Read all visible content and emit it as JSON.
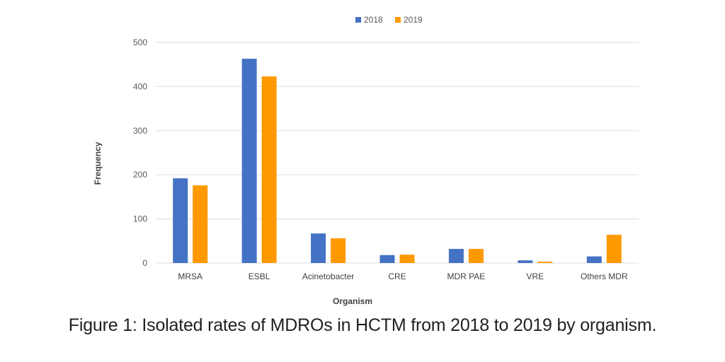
{
  "chart_data": {
    "type": "bar",
    "title": "",
    "xlabel": "Organism",
    "ylabel": "Frequency",
    "ylim": [
      0,
      500
    ],
    "yticks": [
      0,
      100,
      200,
      300,
      400,
      500
    ],
    "grid": true,
    "legend_position": "top-center",
    "categories": [
      "MRSA",
      "ESBL",
      "Acinetobacter",
      "CRE",
      "MDR PAE",
      "VRE",
      "Others MDR"
    ],
    "series": [
      {
        "name": "2018",
        "color": "#4472C4",
        "values": [
          192,
          463,
          67,
          18,
          32,
          6,
          15
        ]
      },
      {
        "name": "2019",
        "color": "#FF9900",
        "values": [
          176,
          423,
          56,
          19,
          32,
          3,
          64
        ]
      }
    ]
  },
  "caption": "Figure 1: Isolated rates of MDROs in HCTM from 2018 to 2019 by organism."
}
